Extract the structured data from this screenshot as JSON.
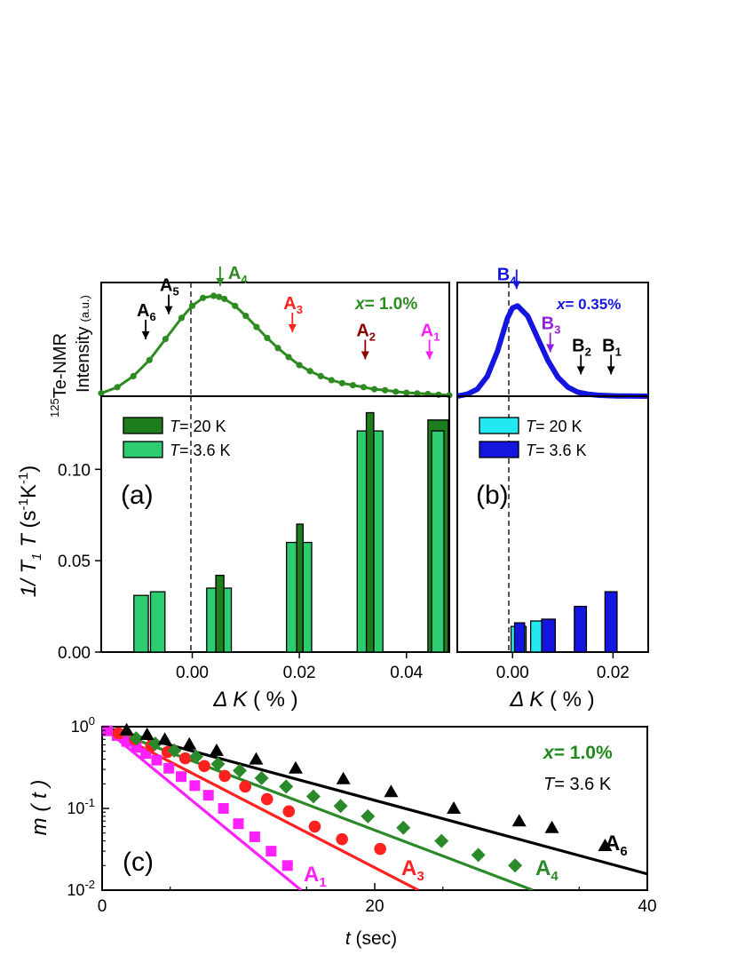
{
  "chart_data": [
    {
      "id": "nmr_a",
      "type": "line",
      "ylabel_1": "125",
      "ylabel_2": "Te-NMR",
      "ylabel_3": "Intensity",
      "ylabel_4": "(a.u.)",
      "x_label": "x",
      "x_value": "= 1.0%",
      "xlim": [
        -0.017,
        0.048
      ],
      "ylim": [
        0,
        1.08
      ],
      "colors": {
        "line": "#2e8b22"
      },
      "spectrum": {
        "x": [
          -0.017,
          -0.014,
          -0.011,
          -0.008,
          -0.005,
          -0.002,
          0.0,
          0.002,
          0.004,
          0.005,
          0.006,
          0.008,
          0.01,
          0.012,
          0.014,
          0.016,
          0.018,
          0.02,
          0.022,
          0.024,
          0.026,
          0.028,
          0.03,
          0.032,
          0.034,
          0.036,
          0.038,
          0.04,
          0.042,
          0.044,
          0.046,
          0.048
        ],
        "y": [
          0.03,
          0.09,
          0.2,
          0.36,
          0.57,
          0.78,
          0.9,
          0.98,
          1.0,
          0.99,
          0.97,
          0.9,
          0.8,
          0.69,
          0.58,
          0.48,
          0.39,
          0.31,
          0.25,
          0.2,
          0.16,
          0.13,
          0.11,
          0.09,
          0.07,
          0.06,
          0.045,
          0.035,
          0.028,
          0.022,
          0.015,
          0.01
        ]
      },
      "markers": [
        {
          "main": "A",
          "sub": "6",
          "x": -0.0087,
          "y": 0.55,
          "color": "#000000"
        },
        {
          "main": "A",
          "sub": "5",
          "x": -0.0044,
          "y": 0.8,
          "color": "#000000"
        },
        {
          "main": "A",
          "sub": "4",
          "x": 0.0052,
          "y": 1.08,
          "color": "#2e8b22"
        },
        {
          "main": "A",
          "sub": "3",
          "x": 0.0187,
          "y": 0.62,
          "color": "#ff2020"
        },
        {
          "main": "A",
          "sub": "2",
          "x": 0.0323,
          "y": 0.35,
          "color": "#8b0000"
        },
        {
          "main": "A",
          "sub": "1",
          "x": 0.0443,
          "y": 0.35,
          "color": "#ff20ff"
        }
      ]
    },
    {
      "id": "nmr_b",
      "type": "line",
      "x_label": "x",
      "x_value": "= 0.35%",
      "xlim": [
        -0.011,
        0.027
      ],
      "ylim": [
        0,
        1.08
      ],
      "colors": {
        "line": "#1515e0"
      },
      "spectrum": {
        "x": [
          -0.011,
          -0.009,
          -0.007,
          -0.005,
          -0.003,
          -0.001,
          0.0,
          0.001,
          0.003,
          0.005,
          0.007,
          0.009,
          0.011,
          0.013,
          0.015,
          0.017,
          0.019,
          0.021,
          0.023,
          0.025,
          0.027
        ],
        "y": [
          0.0,
          0.02,
          0.07,
          0.2,
          0.45,
          0.78,
          0.88,
          0.9,
          0.8,
          0.58,
          0.36,
          0.19,
          0.09,
          0.04,
          0.02,
          0.01,
          0.005,
          0.003,
          0.002,
          0.001,
          0.0
        ]
      },
      "markers": [
        {
          "main": "B",
          "sub": "4",
          "x": 0.0008,
          "y": 1.05,
          "color": "#1515e0"
        },
        {
          "main": "B",
          "sub": "3",
          "x": 0.0075,
          "y": 0.42,
          "color": "#9020e0"
        },
        {
          "main": "B",
          "sub": "2",
          "x": 0.0136,
          "y": 0.2,
          "color": "#000000"
        },
        {
          "main": "B",
          "sub": "1",
          "x": 0.0196,
          "y": 0.2,
          "color": "#000000"
        }
      ]
    },
    {
      "id": "bar_a",
      "type": "bar",
      "panel_label": "(a)",
      "ylabel": "1/T1T (s-1K-1)",
      "xlabel": "ΔK (%)",
      "xlim": [
        -0.017,
        0.048
      ],
      "ylim": [
        0,
        0.14
      ],
      "xticks": [
        0.0,
        0.02,
        0.04
      ],
      "xtick_labels": [
        "0.00",
        "0.02",
        "0.04"
      ],
      "yticks": [
        0.0,
        0.05,
        0.1
      ],
      "ytick_labels": [
        "0.00",
        "0.05",
        "0.10"
      ],
      "legend": [
        {
          "label_T": "T",
          "label_rest": "= 20 K",
          "color": "#1e7e1e"
        },
        {
          "label_T": "T",
          "label_rest": "= 3.6 K",
          "color": "#2ecc71"
        }
      ],
      "series": [
        {
          "name": "T= 20 K",
          "color": "#1e7e1e",
          "bars": [
            [
              0.0044,
              0.0059,
              0.042
            ],
            [
              0.0195,
              0.0207,
              0.07
            ],
            [
              0.0325,
              0.0339,
              0.131
            ],
            [
              0.044,
              0.0478,
              0.127
            ]
          ]
        },
        {
          "name": "T= 3.6 K",
          "color": "#2ecc71",
          "bars": [
            [
              -0.0109,
              -0.0082,
              0.031
            ],
            [
              -0.0078,
              -0.0051,
              0.033
            ],
            [
              0.0027,
              0.0044,
              0.035
            ],
            [
              0.0059,
              0.0073,
              0.035
            ],
            [
              0.0176,
              0.0195,
              0.06
            ],
            [
              0.0207,
              0.0223,
              0.06
            ],
            [
              0.0308,
              0.0325,
              0.121
            ],
            [
              0.0339,
              0.0356,
              0.121
            ],
            [
              0.0447,
              0.047,
              0.121
            ]
          ]
        }
      ]
    },
    {
      "id": "bar_b",
      "type": "bar",
      "panel_label": "(b)",
      "xlabel": "ΔK (%)",
      "xlim": [
        -0.011,
        0.027
      ],
      "ylim": [
        0,
        0.14
      ],
      "xticks": [
        0.0,
        0.02
      ],
      "xtick_labels": [
        "0.00",
        "0.02"
      ],
      "legend": [
        {
          "label_T": "T",
          "label_rest": "= 20 K",
          "color": "#22e8f0"
        },
        {
          "label_T": "T",
          "label_rest": "= 3.6 K",
          "color": "#1515e0"
        }
      ],
      "series": [
        {
          "name": "T= 20 K",
          "color": "#22e8f0",
          "bars": [
            [
              -0.0003,
              0.0027,
              0.014
            ],
            [
              0.0036,
              0.0071,
              0.017
            ]
          ]
        },
        {
          "name": "T= 3.6 K",
          "color": "#1515e0",
          "bars": [
            [
              0.0004,
              0.0024,
              0.016
            ],
            [
              0.0058,
              0.0085,
              0.018
            ],
            [
              0.0123,
              0.0147,
              0.025
            ],
            [
              0.0184,
              0.0208,
              0.033
            ]
          ]
        }
      ]
    },
    {
      "id": "recovery_c",
      "type": "scatter",
      "panel_label": "(c)",
      "xlabel_t": "t",
      "xlabel_rest": "(sec)",
      "ylabel": "m ( t )",
      "xlim": [
        0,
        40
      ],
      "ylim_log10": [
        -2,
        0
      ],
      "xticks": [
        0,
        20,
        40
      ],
      "xtick_labels": [
        "0",
        "20",
        "40"
      ],
      "yticks_log10": [
        0,
        -1,
        -2
      ],
      "ytick_base": "10",
      "ytick_exps": [
        "0",
        "-1",
        "-2"
      ],
      "info_x_label": "x",
      "info_x_value": "= 1.0%",
      "info_T_label": "T",
      "info_T_value": "= 3.6 K",
      "series": [
        {
          "name": "A1",
          "main": "A",
          "sub": "1",
          "marker": "square",
          "color": "#ff20ff",
          "x": [
            0.4,
            1.1,
            1.8,
            2.5,
            3.2,
            4.0,
            4.9,
            5.8,
            6.8,
            7.8,
            8.9,
            10.0,
            11.2,
            12.4,
            13.6
          ],
          "y": [
            0.89,
            0.78,
            0.66,
            0.56,
            0.47,
            0.39,
            0.31,
            0.245,
            0.19,
            0.145,
            0.1,
            0.065,
            0.045,
            0.03,
            0.02
          ],
          "fit_x": [
            0,
            14.6
          ],
          "fit_y": [
            1.0,
            0.01
          ]
        },
        {
          "name": "A3",
          "main": "A",
          "sub": "3",
          "marker": "circle",
          "color": "#ff2020",
          "x": [
            1.2,
            2.4,
            3.6,
            4.8,
            6.1,
            7.5,
            9.0,
            10.5,
            12.1,
            13.7,
            15.6,
            17.6,
            20.4
          ],
          "y": [
            0.83,
            0.7,
            0.58,
            0.49,
            0.41,
            0.33,
            0.25,
            0.185,
            0.13,
            0.092,
            0.06,
            0.042,
            0.032
          ],
          "fit_x": [
            0,
            23.2
          ],
          "fit_y": [
            1.0,
            0.01
          ]
        },
        {
          "name": "A4",
          "main": "A",
          "sub": "4",
          "marker": "diamond",
          "color": "#2a8a2a",
          "x": [
            2.5,
            3.9,
            5.3,
            6.9,
            8.5,
            10.1,
            11.7,
            13.5,
            15.5,
            17.5,
            19.5,
            22.1,
            24.9,
            27.6,
            30.3
          ],
          "y": [
            0.72,
            0.62,
            0.51,
            0.43,
            0.35,
            0.29,
            0.235,
            0.185,
            0.14,
            0.107,
            0.08,
            0.058,
            0.04,
            0.027,
            0.02
          ],
          "fit_x": [
            0,
            31.6
          ],
          "fit_y": [
            1.0,
            0.01
          ]
        },
        {
          "name": "A6",
          "main": "A",
          "sub": "6",
          "marker": "triangle",
          "color": "#000000",
          "x": [
            1.8,
            3.3,
            4.6,
            6.4,
            8.4,
            11.3,
            14.2,
            17.7,
            21.2,
            25.8,
            30.6,
            33.0,
            36.9
          ],
          "y": [
            0.91,
            0.8,
            0.7,
            0.61,
            0.51,
            0.4,
            0.31,
            0.23,
            0.16,
            0.1,
            0.07,
            0.058,
            0.035
          ],
          "fit_x": [
            0,
            40
          ],
          "fit_y": [
            1.0,
            0.0158
          ]
        }
      ]
    }
  ]
}
